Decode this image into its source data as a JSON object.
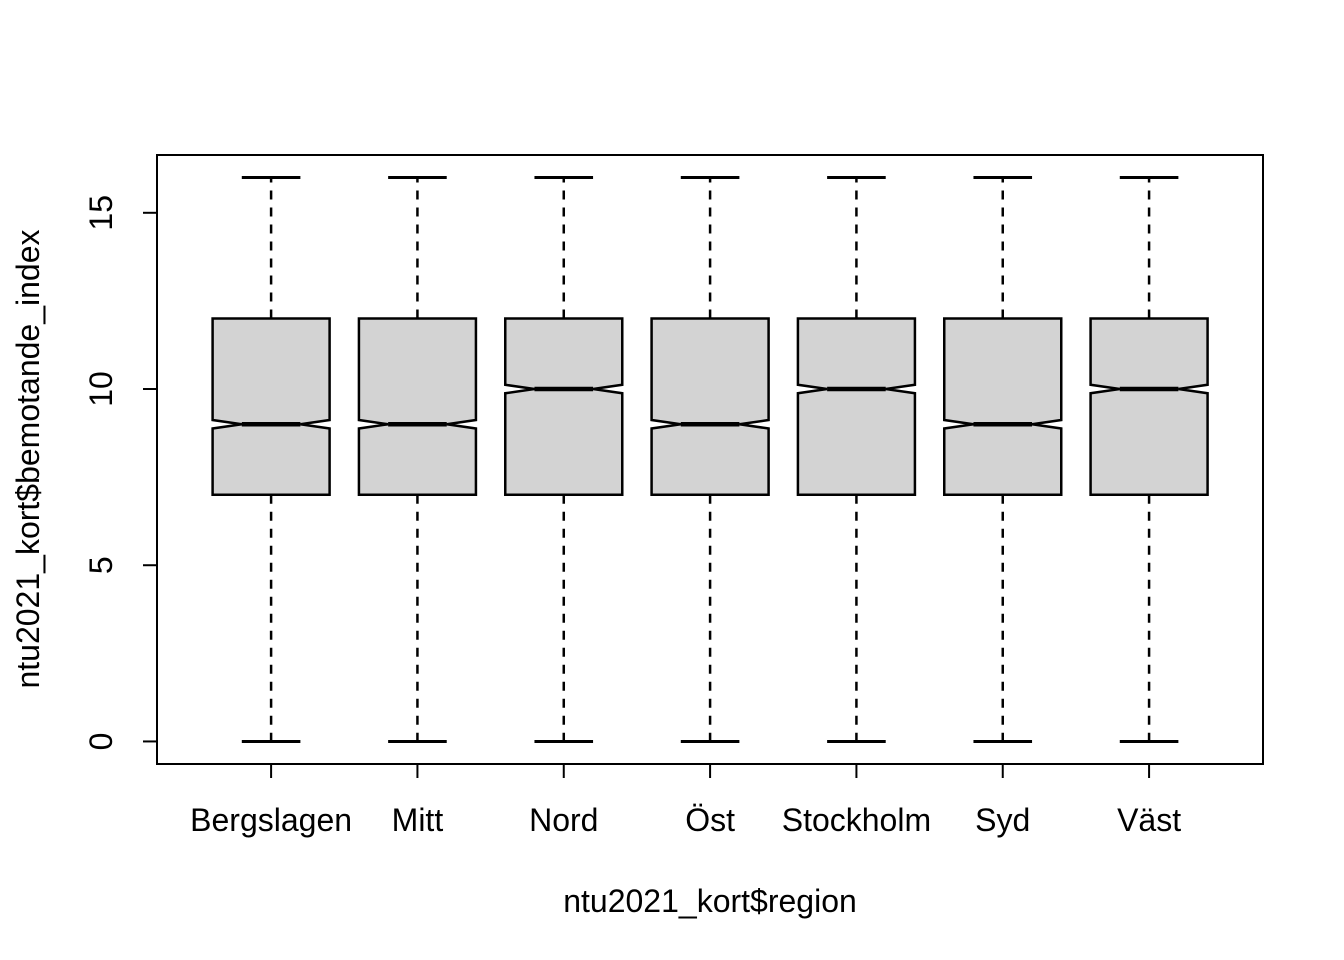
{
  "chart_data": {
    "type": "boxplot",
    "notched": true,
    "title": "",
    "xlabel": "ntu2021_kort$region",
    "ylabel": "ntu2021_kort$bemotande_index",
    "categories": [
      "Bergslagen",
      "Mitt",
      "Nord",
      "Öst",
      "Stockholm",
      "Syd",
      "Väst"
    ],
    "yticks": [
      0,
      5,
      10,
      15
    ],
    "ylim": [
      0,
      16
    ],
    "grid": false,
    "legend": false,
    "boxes": [
      {
        "label": "Bergslagen",
        "whisker_low": 0,
        "q1": 7,
        "median": 9,
        "q3": 12,
        "whisker_high": 16,
        "notch_low": 8.88,
        "notch_high": 9.12
      },
      {
        "label": "Mitt",
        "whisker_low": 0,
        "q1": 7,
        "median": 9,
        "q3": 12,
        "whisker_high": 16,
        "notch_low": 8.88,
        "notch_high": 9.12
      },
      {
        "label": "Nord",
        "whisker_low": 0,
        "q1": 7,
        "median": 10,
        "q3": 12,
        "whisker_high": 16,
        "notch_low": 9.88,
        "notch_high": 10.12
      },
      {
        "label": "Öst",
        "whisker_low": 0,
        "q1": 7,
        "median": 9,
        "q3": 12,
        "whisker_high": 16,
        "notch_low": 8.88,
        "notch_high": 9.12
      },
      {
        "label": "Stockholm",
        "whisker_low": 0,
        "q1": 7,
        "median": 10,
        "q3": 12,
        "whisker_high": 16,
        "notch_low": 9.88,
        "notch_high": 10.12
      },
      {
        "label": "Syd",
        "whisker_low": 0,
        "q1": 7,
        "median": 9,
        "q3": 12,
        "whisker_high": 16,
        "notch_low": 8.88,
        "notch_high": 9.12
      },
      {
        "label": "Väst",
        "whisker_low": 0,
        "q1": 7,
        "median": 10,
        "q3": 12,
        "whisker_high": 16,
        "notch_low": 9.88,
        "notch_high": 10.12
      }
    ],
    "style": {
      "box_fill": "#d3d3d3",
      "line_color": "#000000",
      "background": "#ffffff"
    }
  }
}
